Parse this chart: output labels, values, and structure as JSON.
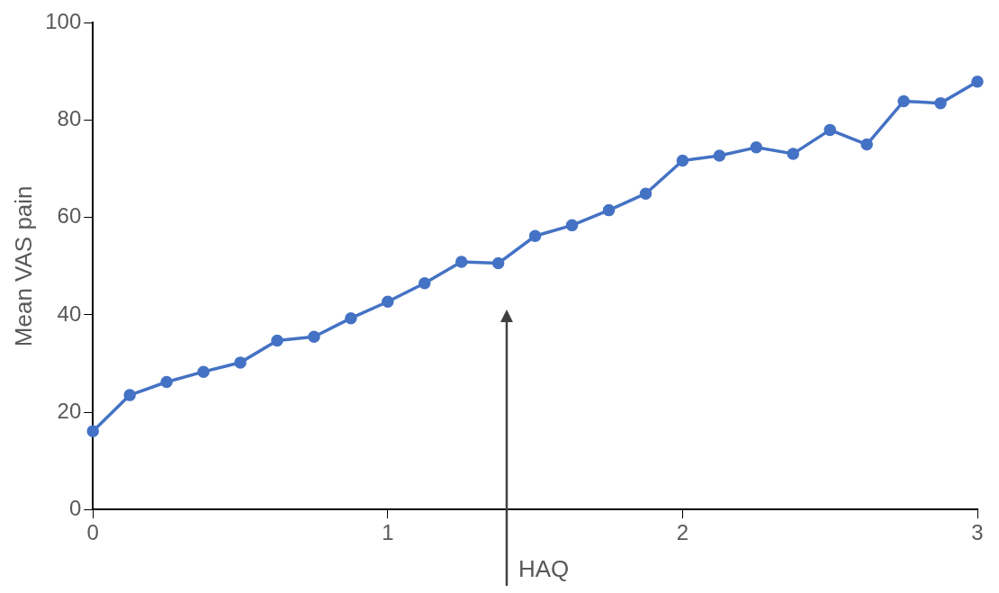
{
  "chart_data": {
    "type": "line",
    "xlabel": "HAQ",
    "ylabel": "Mean VAS pain",
    "x": [
      0,
      0.125,
      0.25,
      0.375,
      0.5,
      0.625,
      0.75,
      0.875,
      1,
      1.125,
      1.25,
      1.375,
      1.5,
      1.625,
      1.75,
      1.875,
      2,
      2.125,
      2.25,
      2.375,
      2.5,
      2.625,
      2.75,
      2.875,
      3
    ],
    "series": [
      {
        "color": "#4472c4",
        "values": [
          16.1,
          23.5,
          26.2,
          28.3,
          30.2,
          34.7,
          35.5,
          39.3,
          42.7,
          46.5,
          50.9,
          50.6,
          56.2,
          58.4,
          61.5,
          64.9,
          71.7,
          72.7,
          74.4,
          73.1,
          78.0,
          75.0,
          83.9,
          83.5,
          87.9
        ]
      }
    ],
    "xlim": [
      0,
      3
    ],
    "xticks": [
      0,
      1,
      2,
      3
    ],
    "ylim": [
      0,
      100
    ],
    "yticks": [
      0,
      20,
      40,
      60,
      80,
      100
    ],
    "grid": false,
    "legend": false,
    "marker": "circle",
    "line_style": "solid"
  }
}
